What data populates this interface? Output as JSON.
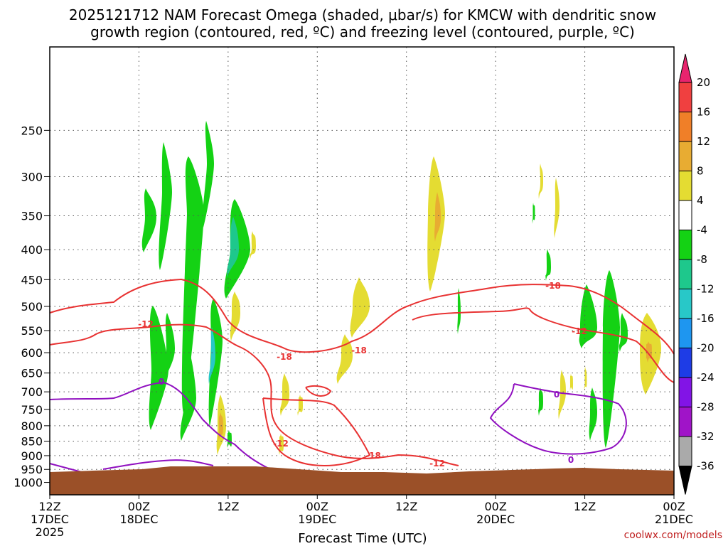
{
  "chart_data": {
    "type": "heatmap",
    "title_lines": [
      "2025121712 NAM Forecast Omega (shaded, μbar/s) for KMCW with dendritic snow",
      "growth region (contoured, red, ºC) and freezing level (contoured, purple, ºC)"
    ],
    "xlabel": "Forecast Time (UTC)",
    "credit": "coolwx.com/models",
    "y_axis": {
      "ticks": [
        250,
        300,
        350,
        400,
        450,
        500,
        550,
        600,
        650,
        700,
        750,
        800,
        850,
        900,
        950,
        1000
      ],
      "range": [
        1050,
        180
      ],
      "scale": "log-pressure"
    },
    "x_axis": {
      "range_hours": [
        0,
        84
      ],
      "ticks": [
        {
          "h": 0,
          "lines": [
            "12Z",
            "17DEC",
            "2025"
          ]
        },
        {
          "h": 12,
          "lines": [
            "00Z",
            "18DEC"
          ]
        },
        {
          "h": 24,
          "lines": [
            "12Z"
          ]
        },
        {
          "h": 36,
          "lines": [
            "00Z",
            "19DEC"
          ]
        },
        {
          "h": 48,
          "lines": [
            "12Z"
          ]
        },
        {
          "h": 60,
          "lines": [
            "00Z",
            "20DEC"
          ]
        },
        {
          "h": 72,
          "lines": [
            "12Z"
          ]
        },
        {
          "h": 84,
          "lines": [
            "00Z",
            "21DEC"
          ]
        }
      ]
    },
    "colorbar": {
      "labels": [
        "20",
        "16",
        "12",
        "8",
        "4",
        "-4",
        "-8",
        "-12",
        "-16",
        "-20",
        "-24",
        "-28",
        "-32",
        "-36"
      ],
      "colors": [
        "#e8246e",
        "#f04040",
        "#f07f28",
        "#e8ac32",
        "#e4dc32",
        "#ffffff",
        "#14d214",
        "#1ec88c",
        "#28c8c8",
        "#1e96f0",
        "#1e3ce6",
        "#8214e6",
        "#a014c8",
        "#aaaaaa",
        "#000000"
      ],
      "colors_note": "top arrow, 20-16, 16-12, 12-8, 8-4, 4 to -4, -4 to -8, -8 to -12, -12 to -16, -16 to -20, -20 to -24, -24 to -28, -28 to -32, -32 to -36, bottom arrow"
    },
    "contour_labels": {
      "red": [
        "-12",
        "-18",
        "-18",
        "-12",
        "-18",
        "-12",
        "-18",
        "-12"
      ],
      "purple": [
        "0",
        "0",
        "0"
      ]
    },
    "colors": {
      "dgz_contour": "#e83232",
      "freezing_contour": "#9010c0",
      "terrain": "#9b5028",
      "grid": "#555555"
    }
  }
}
